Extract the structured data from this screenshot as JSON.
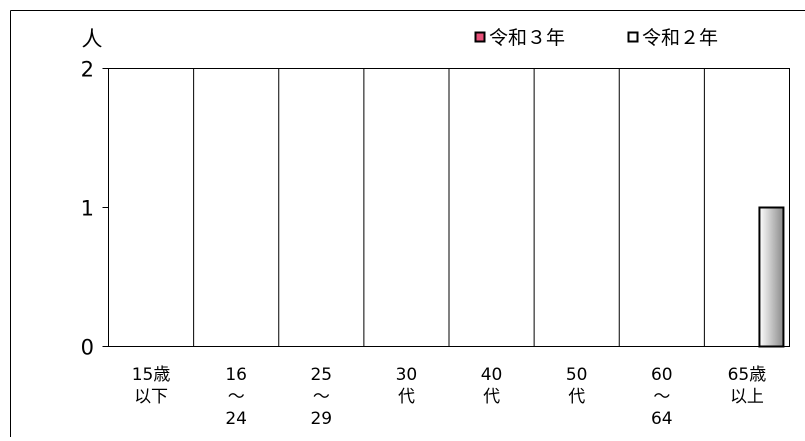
{
  "chart_data": {
    "type": "bar",
    "ylabel": "人",
    "ylim": [
      0,
      2
    ],
    "yticks": [
      "0",
      "1",
      "2"
    ],
    "categories": [
      [
        "15歳",
        "以下"
      ],
      [
        "16",
        "～",
        "24"
      ],
      [
        "25",
        "～",
        "29"
      ],
      [
        "30",
        "代"
      ],
      [
        "40",
        "代"
      ],
      [
        "50",
        "代"
      ],
      [
        "60",
        "～",
        "64"
      ],
      [
        "65歳",
        "以上"
      ]
    ],
    "series": [
      {
        "name": "令和３年",
        "values": [
          0,
          0,
          0,
          0,
          0,
          0,
          0,
          0
        ],
        "color": "#e8527a"
      },
      {
        "name": "令和２年",
        "values": [
          0,
          0,
          0,
          0,
          0,
          0,
          0,
          1
        ],
        "color": "#ffffff"
      }
    ],
    "legend_position": "top-right",
    "grid": false,
    "category_dividers": true
  }
}
